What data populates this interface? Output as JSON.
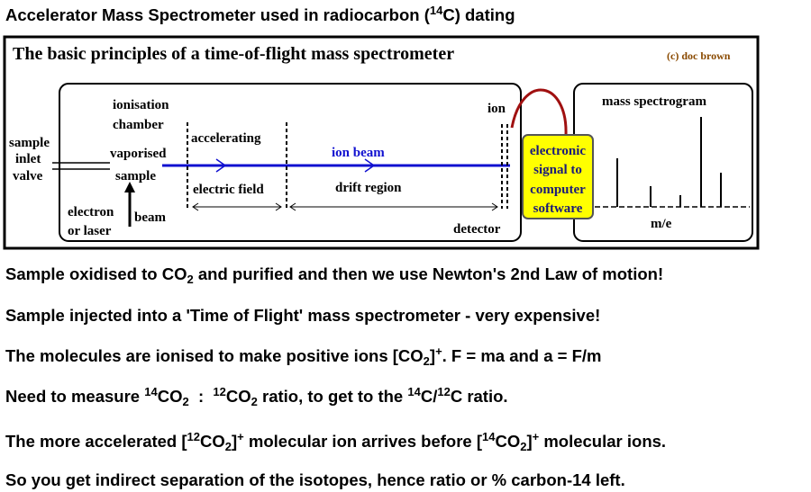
{
  "title": [
    "Accelerator Mass Spectrometer used in radiocarbon (",
    "14",
    "C) dating"
  ],
  "diagram": {
    "heading": "The basic principles of a time-of-flight mass spectrometer",
    "credit": "(c) doc brown",
    "ionisation_chamber": [
      "ionisation",
      "chamber"
    ],
    "inlet": [
      "sample",
      "inlet",
      "valve"
    ],
    "vaporised": [
      "vaporised",
      "sample"
    ],
    "electron": [
      "electron",
      "or laser",
      "beam"
    ],
    "accelerating": "accelerating",
    "electric_field": "electric field",
    "ion_beam": "ion beam",
    "drift_region": "drift region",
    "ion": "ion",
    "detector": "detector",
    "electronic": [
      "electronic",
      "signal to",
      "computer",
      "software"
    ],
    "spectrogram": "mass spectrogram",
    "m_e": "m/e"
  },
  "lines": [
    [
      "Sample oxidised to CO",
      "2",
      " and purified and then we use Newton's 2nd Law of motion!"
    ],
    [
      "Sample injected into a 'Time of Flight' mass spectrometer - very expensive!"
    ],
    [
      "The molecules are ionised to make positive ions [CO",
      "2",
      "]",
      "+",
      ". F = ma and a = F/m"
    ],
    [
      "Need to measure ",
      "14",
      "CO",
      "2",
      "  :  ",
      "12",
      "CO",
      "2",
      " ratio, to get to the ",
      "14",
      "C/",
      "12",
      "C ratio."
    ],
    [
      "The more accelerated [",
      "12",
      "CO",
      "2",
      "]",
      "+",
      " molecular ion arrives before [",
      "14",
      "CO",
      "2",
      "]",
      "+",
      " molecular ions."
    ],
    [
      "So you get indirect separation of the isotopes, hence ratio or % carbon-14 left."
    ]
  ]
}
